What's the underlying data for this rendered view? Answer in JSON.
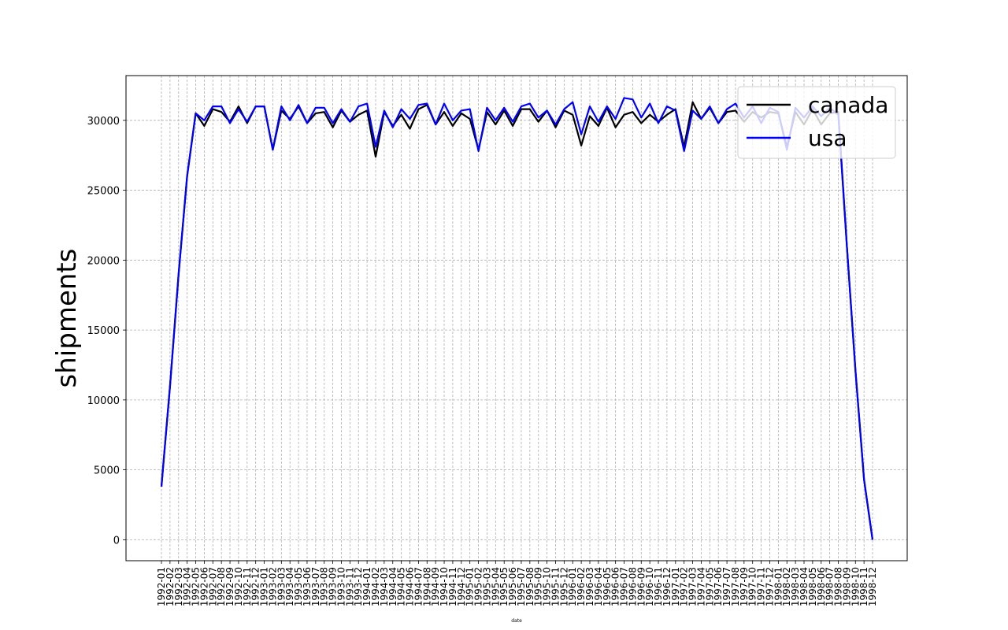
{
  "chart_data": {
    "type": "line",
    "title": "",
    "xlabel": "date",
    "ylabel": "shipments",
    "ylim": [
      -1500,
      33200
    ],
    "yticks": [
      0,
      5000,
      10000,
      15000,
      20000,
      25000,
      30000
    ],
    "grid": true,
    "legend_position": "top-right",
    "x": [
      "1992-01",
      "1992-02",
      "1992-03",
      "1992-04",
      "1992-05",
      "1992-06",
      "1992-07",
      "1992-08",
      "1992-09",
      "1992-10",
      "1992-11",
      "1992-12",
      "1993-01",
      "1993-02",
      "1993-03",
      "1993-04",
      "1993-05",
      "1993-06",
      "1993-07",
      "1993-08",
      "1993-09",
      "1993-10",
      "1993-11",
      "1993-12",
      "1994-01",
      "1994-02",
      "1994-03",
      "1994-04",
      "1994-05",
      "1994-06",
      "1994-07",
      "1994-08",
      "1994-09",
      "1994-10",
      "1994-11",
      "1994-12",
      "1995-01",
      "1995-02",
      "1995-03",
      "1995-04",
      "1995-05",
      "1995-06",
      "1995-07",
      "1995-08",
      "1995-09",
      "1995-10",
      "1995-11",
      "1995-12",
      "1996-01",
      "1996-02",
      "1996-03",
      "1996-04",
      "1996-05",
      "1996-06",
      "1996-07",
      "1996-08",
      "1996-09",
      "1996-10",
      "1996-11",
      "1996-12",
      "1997-01",
      "1997-02",
      "1997-03",
      "1997-04",
      "1997-05",
      "1997-06",
      "1997-07",
      "1997-08",
      "1997-09",
      "1997-10",
      "1997-11",
      "1997-12",
      "1998-01",
      "1998-02",
      "1998-03",
      "1998-04",
      "1998-05",
      "1998-06",
      "1998-07",
      "1998-08",
      "1998-09",
      "1998-10",
      "1998-11",
      "1998-12"
    ],
    "series": [
      {
        "name": "canada",
        "color": "#000000",
        "values": [
          3800,
          11000,
          19000,
          26000,
          30500,
          29600,
          30800,
          30600,
          29900,
          31000,
          29800,
          31000,
          31000,
          27900,
          30700,
          30100,
          31000,
          29800,
          30500,
          30600,
          29500,
          30700,
          29900,
          30400,
          30700,
          27400,
          30600,
          29600,
          30400,
          29400,
          30800,
          31100,
          29700,
          30600,
          29600,
          30500,
          30100,
          27900,
          30600,
          29700,
          30700,
          29600,
          30800,
          30800,
          29900,
          30700,
          29500,
          30700,
          30400,
          28200,
          30300,
          29600,
          30900,
          29500,
          30400,
          30600,
          29800,
          30400,
          29900,
          30400,
          30800,
          28100,
          31300,
          30100,
          30900,
          29800,
          30600,
          30700,
          29900,
          30600,
          30200,
          30600,
          30500,
          28100,
          30600,
          29700,
          30800,
          29700,
          30500,
          30600,
          21000,
          12100,
          4300,
          0
        ]
      },
      {
        "name": "usa",
        "color": "#0000ff",
        "values": [
          3800,
          11000,
          19000,
          26000,
          30500,
          30000,
          31000,
          31000,
          29800,
          30800,
          29900,
          31000,
          31000,
          27900,
          31000,
          30000,
          31100,
          29800,
          30900,
          30900,
          29800,
          30800,
          29900,
          31000,
          31200,
          28100,
          30700,
          29500,
          30800,
          30100,
          31100,
          31200,
          29700,
          31200,
          30000,
          30700,
          30800,
          27800,
          30900,
          30000,
          30900,
          29900,
          31000,
          31200,
          30200,
          30700,
          29700,
          30800,
          31300,
          29000,
          31000,
          29900,
          31000,
          30100,
          31600,
          31500,
          30200,
          31200,
          29800,
          31000,
          30700,
          27800,
          30700,
          30100,
          31000,
          29800,
          30800,
          31200,
          30200,
          31000,
          29800,
          30900,
          30600,
          27900,
          30900,
          30200,
          31000,
          30300,
          30900,
          30400,
          21000,
          12100,
          4300,
          0
        ]
      }
    ]
  }
}
